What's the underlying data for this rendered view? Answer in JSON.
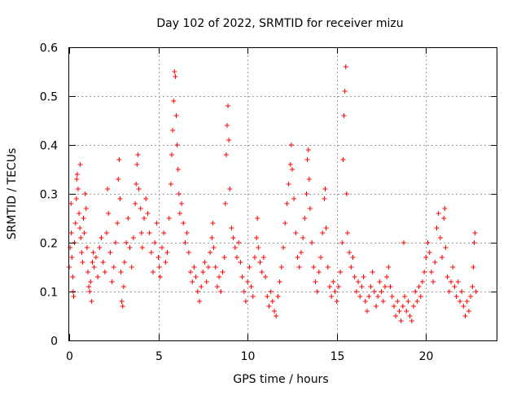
{
  "chart_data": {
    "type": "scatter",
    "title": "Day 102 of 2022, SRMTID for receiver mizu",
    "xlabel": "GPS time / hours",
    "ylabel": "SRMTID / TECUs",
    "xlim": [
      0,
      24
    ],
    "ylim": [
      0,
      0.6
    ],
    "x_ticks": [
      0,
      5,
      10,
      15,
      20
    ],
    "x_tick_labels": [
      "0",
      "5",
      "10",
      "15",
      "20"
    ],
    "y_ticks": [
      0,
      0.1,
      0.2,
      0.3,
      0.4,
      0.5,
      0.6
    ],
    "y_tick_labels": [
      "0",
      "0.1",
      "0.2",
      "0.3",
      "0.4",
      "0.5",
      "0.6"
    ],
    "grid": true,
    "marker": "+",
    "color": "#ff0000",
    "series": [
      {
        "name": "SRMTID",
        "points": [
          [
            0.0,
            0.15
          ],
          [
            0.05,
            0.19
          ],
          [
            0.1,
            0.28
          ],
          [
            0.12,
            0.22
          ],
          [
            0.15,
            0.17
          ],
          [
            0.2,
            0.13
          ],
          [
            0.22,
            0.1
          ],
          [
            0.25,
            0.09
          ],
          [
            0.3,
            0.2
          ],
          [
            0.35,
            0.24
          ],
          [
            0.4,
            0.29
          ],
          [
            0.42,
            0.33
          ],
          [
            0.45,
            0.34
          ],
          [
            0.5,
            0.31
          ],
          [
            0.55,
            0.26
          ],
          [
            0.6,
            0.23
          ],
          [
            0.62,
            0.36
          ],
          [
            0.65,
            0.21
          ],
          [
            0.7,
            0.18
          ],
          [
            0.75,
            0.16
          ],
          [
            0.8,
            0.25
          ],
          [
            0.85,
            0.22
          ],
          [
            0.9,
            0.3
          ],
          [
            0.95,
            0.27
          ],
          [
            1.0,
            0.19
          ],
          [
            1.05,
            0.14
          ],
          [
            1.1,
            0.11
          ],
          [
            1.15,
            0.1
          ],
          [
            1.2,
            0.12
          ],
          [
            1.25,
            0.08
          ],
          [
            1.3,
            0.16
          ],
          [
            1.35,
            0.18
          ],
          [
            1.4,
            0.15
          ],
          [
            1.5,
            0.17
          ],
          [
            1.6,
            0.13
          ],
          [
            1.7,
            0.19
          ],
          [
            1.8,
            0.21
          ],
          [
            1.9,
            0.16
          ],
          [
            2.0,
            0.14
          ],
          [
            2.1,
            0.22
          ],
          [
            2.15,
            0.31
          ],
          [
            2.2,
            0.26
          ],
          [
            2.3,
            0.18
          ],
          [
            2.4,
            0.12
          ],
          [
            2.5,
            0.15
          ],
          [
            2.6,
            0.2
          ],
          [
            2.7,
            0.24
          ],
          [
            2.75,
            0.33
          ],
          [
            2.8,
            0.37
          ],
          [
            2.85,
            0.29
          ],
          [
            2.9,
            0.14
          ],
          [
            2.95,
            0.08
          ],
          [
            3.0,
            0.07
          ],
          [
            3.05,
            0.11
          ],
          [
            3.1,
            0.16
          ],
          [
            3.2,
            0.2
          ],
          [
            3.3,
            0.25
          ],
          [
            3.4,
            0.19
          ],
          [
            3.5,
            0.15
          ],
          [
            3.6,
            0.21
          ],
          [
            3.7,
            0.28
          ],
          [
            3.75,
            0.32
          ],
          [
            3.8,
            0.36
          ],
          [
            3.85,
            0.38
          ],
          [
            3.9,
            0.31
          ],
          [
            4.0,
            0.27
          ],
          [
            4.05,
            0.22
          ],
          [
            4.1,
            0.19
          ],
          [
            4.2,
            0.25
          ],
          [
            4.3,
            0.29
          ],
          [
            4.4,
            0.26
          ],
          [
            4.5,
            0.22
          ],
          [
            4.6,
            0.18
          ],
          [
            4.7,
            0.14
          ],
          [
            4.8,
            0.2
          ],
          [
            4.9,
            0.24
          ],
          [
            5.0,
            0.17
          ],
          [
            5.05,
            0.15
          ],
          [
            5.1,
            0.13
          ],
          [
            5.2,
            0.19
          ],
          [
            5.3,
            0.22
          ],
          [
            5.4,
            0.16
          ],
          [
            5.5,
            0.18
          ],
          [
            5.6,
            0.25
          ],
          [
            5.7,
            0.32
          ],
          [
            5.75,
            0.38
          ],
          [
            5.8,
            0.43
          ],
          [
            5.85,
            0.49
          ],
          [
            5.9,
            0.55
          ],
          [
            5.95,
            0.54
          ],
          [
            6.0,
            0.46
          ],
          [
            6.05,
            0.4
          ],
          [
            6.1,
            0.35
          ],
          [
            6.15,
            0.3
          ],
          [
            6.2,
            0.26
          ],
          [
            6.3,
            0.28
          ],
          [
            6.4,
            0.24
          ],
          [
            6.5,
            0.2
          ],
          [
            6.6,
            0.22
          ],
          [
            6.7,
            0.18
          ],
          [
            6.8,
            0.14
          ],
          [
            6.9,
            0.12
          ],
          [
            7.0,
            0.15
          ],
          [
            7.1,
            0.13
          ],
          [
            7.2,
            0.1
          ],
          [
            7.3,
            0.08
          ],
          [
            7.4,
            0.11
          ],
          [
            7.5,
            0.14
          ],
          [
            7.6,
            0.16
          ],
          [
            7.7,
            0.12
          ],
          [
            7.8,
            0.15
          ],
          [
            7.9,
            0.18
          ],
          [
            8.0,
            0.21
          ],
          [
            8.05,
            0.24
          ],
          [
            8.1,
            0.19
          ],
          [
            8.2,
            0.15
          ],
          [
            8.3,
            0.11
          ],
          [
            8.4,
            0.13
          ],
          [
            8.5,
            0.1
          ],
          [
            8.6,
            0.14
          ],
          [
            8.7,
            0.17
          ],
          [
            8.75,
            0.28
          ],
          [
            8.8,
            0.38
          ],
          [
            8.85,
            0.44
          ],
          [
            8.9,
            0.48
          ],
          [
            8.95,
            0.41
          ],
          [
            9.0,
            0.31
          ],
          [
            9.1,
            0.23
          ],
          [
            9.2,
            0.21
          ],
          [
            9.3,
            0.19
          ],
          [
            9.4,
            0.17
          ],
          [
            9.5,
            0.2
          ],
          [
            9.6,
            0.16
          ],
          [
            9.7,
            0.13
          ],
          [
            9.8,
            0.1
          ],
          [
            9.9,
            0.08
          ],
          [
            10.0,
            0.12
          ],
          [
            10.1,
            0.15
          ],
          [
            10.2,
            0.11
          ],
          [
            10.3,
            0.09
          ],
          [
            10.4,
            0.17
          ],
          [
            10.5,
            0.21
          ],
          [
            10.55,
            0.25
          ],
          [
            10.6,
            0.19
          ],
          [
            10.7,
            0.16
          ],
          [
            10.8,
            0.14
          ],
          [
            10.9,
            0.17
          ],
          [
            11.0,
            0.13
          ],
          [
            11.1,
            0.09
          ],
          [
            11.2,
            0.07
          ],
          [
            11.3,
            0.1
          ],
          [
            11.4,
            0.08
          ],
          [
            11.5,
            0.06
          ],
          [
            11.6,
            0.05
          ],
          [
            11.7,
            0.09
          ],
          [
            11.8,
            0.12
          ],
          [
            11.9,
            0.15
          ],
          [
            12.0,
            0.19
          ],
          [
            12.1,
            0.24
          ],
          [
            12.2,
            0.28
          ],
          [
            12.3,
            0.32
          ],
          [
            12.4,
            0.36
          ],
          [
            12.45,
            0.4
          ],
          [
            12.5,
            0.35
          ],
          [
            12.6,
            0.29
          ],
          [
            12.7,
            0.22
          ],
          [
            12.8,
            0.17
          ],
          [
            12.9,
            0.15
          ],
          [
            13.0,
            0.18
          ],
          [
            13.1,
            0.21
          ],
          [
            13.2,
            0.25
          ],
          [
            13.3,
            0.3
          ],
          [
            13.35,
            0.37
          ],
          [
            13.4,
            0.39
          ],
          [
            13.45,
            0.33
          ],
          [
            13.5,
            0.27
          ],
          [
            13.6,
            0.2
          ],
          [
            13.7,
            0.15
          ],
          [
            13.8,
            0.12
          ],
          [
            13.9,
            0.1
          ],
          [
            14.0,
            0.14
          ],
          [
            14.1,
            0.17
          ],
          [
            14.2,
            0.22
          ],
          [
            14.3,
            0.29
          ],
          [
            14.35,
            0.31
          ],
          [
            14.4,
            0.23
          ],
          [
            14.5,
            0.15
          ],
          [
            14.6,
            0.11
          ],
          [
            14.7,
            0.09
          ],
          [
            14.8,
            0.12
          ],
          [
            14.9,
            0.1
          ],
          [
            15.0,
            0.08
          ],
          [
            15.1,
            0.11
          ],
          [
            15.2,
            0.14
          ],
          [
            15.3,
            0.2
          ],
          [
            15.35,
            0.37
          ],
          [
            15.4,
            0.46
          ],
          [
            15.45,
            0.51
          ],
          [
            15.5,
            0.56
          ],
          [
            15.55,
            0.3
          ],
          [
            15.6,
            0.22
          ],
          [
            15.7,
            0.18
          ],
          [
            15.8,
            0.15
          ],
          [
            15.9,
            0.17
          ],
          [
            16.0,
            0.13
          ],
          [
            16.1,
            0.1
          ],
          [
            16.2,
            0.12
          ],
          [
            16.3,
            0.09
          ],
          [
            16.4,
            0.11
          ],
          [
            16.5,
            0.13
          ],
          [
            16.6,
            0.08
          ],
          [
            16.7,
            0.06
          ],
          [
            16.8,
            0.09
          ],
          [
            16.9,
            0.11
          ],
          [
            17.0,
            0.14
          ],
          [
            17.1,
            0.1
          ],
          [
            17.2,
            0.07
          ],
          [
            17.3,
            0.09
          ],
          [
            17.4,
            0.12
          ],
          [
            17.5,
            0.1
          ],
          [
            17.6,
            0.08
          ],
          [
            17.7,
            0.11
          ],
          [
            17.8,
            0.13
          ],
          [
            17.9,
            0.15
          ],
          [
            18.0,
            0.11
          ],
          [
            18.1,
            0.09
          ],
          [
            18.2,
            0.07
          ],
          [
            18.3,
            0.05
          ],
          [
            18.4,
            0.08
          ],
          [
            18.5,
            0.06
          ],
          [
            18.6,
            0.04
          ],
          [
            18.7,
            0.07
          ],
          [
            18.75,
            0.2
          ],
          [
            18.8,
            0.09
          ],
          [
            18.9,
            0.06
          ],
          [
            19.0,
            0.08
          ],
          [
            19.1,
            0.05
          ],
          [
            19.2,
            0.04
          ],
          [
            19.3,
            0.07
          ],
          [
            19.4,
            0.1
          ],
          [
            19.5,
            0.08
          ],
          [
            19.6,
            0.11
          ],
          [
            19.7,
            0.09
          ],
          [
            19.8,
            0.12
          ],
          [
            19.9,
            0.14
          ],
          [
            20.0,
            0.17
          ],
          [
            20.1,
            0.2
          ],
          [
            20.2,
            0.18
          ],
          [
            20.3,
            0.14
          ],
          [
            20.4,
            0.12
          ],
          [
            20.5,
            0.16
          ],
          [
            20.6,
            0.23
          ],
          [
            20.7,
            0.26
          ],
          [
            20.8,
            0.21
          ],
          [
            20.9,
            0.17
          ],
          [
            21.0,
            0.25
          ],
          [
            21.05,
            0.27
          ],
          [
            21.1,
            0.19
          ],
          [
            21.2,
            0.13
          ],
          [
            21.3,
            0.1
          ],
          [
            21.4,
            0.12
          ],
          [
            21.5,
            0.15
          ],
          [
            21.6,
            0.11
          ],
          [
            21.7,
            0.09
          ],
          [
            21.8,
            0.12
          ],
          [
            21.9,
            0.08
          ],
          [
            22.0,
            0.1
          ],
          [
            22.1,
            0.07
          ],
          [
            22.2,
            0.05
          ],
          [
            22.3,
            0.08
          ],
          [
            22.4,
            0.06
          ],
          [
            22.5,
            0.09
          ],
          [
            22.6,
            0.11
          ],
          [
            22.65,
            0.15
          ],
          [
            22.7,
            0.2
          ],
          [
            22.75,
            0.22
          ],
          [
            22.8,
            0.1
          ]
        ]
      }
    ]
  }
}
